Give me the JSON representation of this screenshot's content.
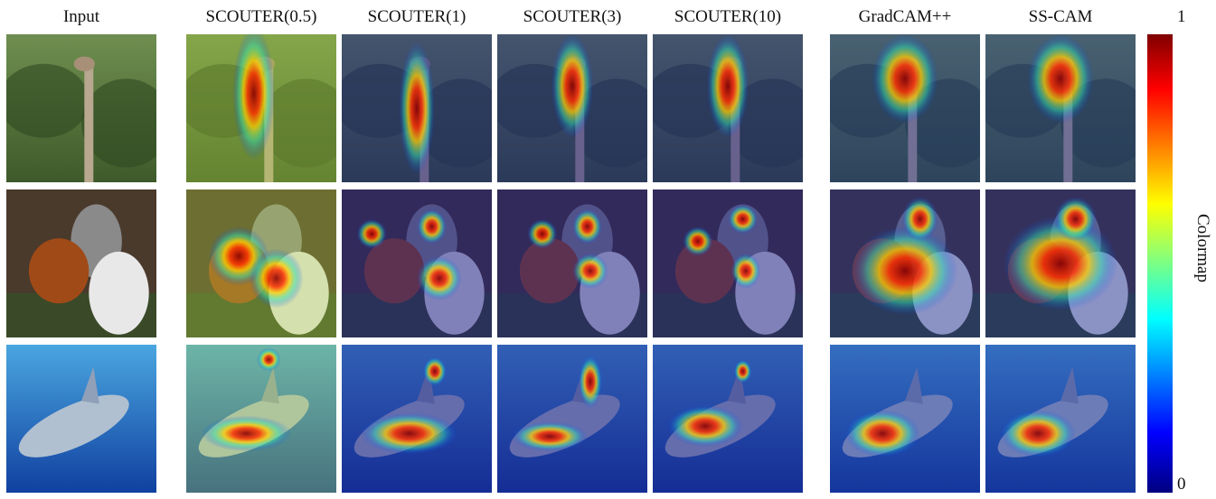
{
  "columns": [
    "Input",
    "SCOUTER(0.5)",
    "SCOUTER(1)",
    "SCOUTER(3)",
    "SCOUTER(10)",
    "GradCAM++",
    "SS-CAM"
  ],
  "colorbar": {
    "max_label": "1",
    "min_label": "0",
    "title": "Colormap"
  }
}
